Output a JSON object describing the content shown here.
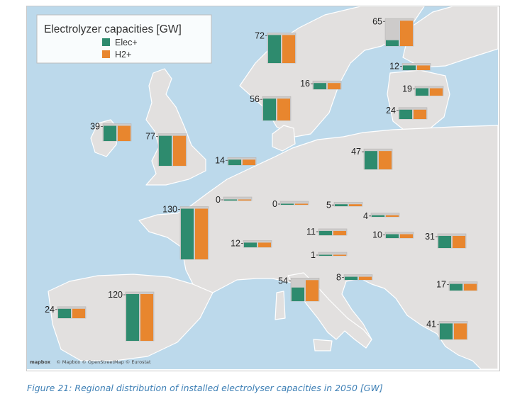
{
  "caption": "Figure 21: Regional distribution of installed electrolyser capacities in 2050 [GW]",
  "attribution": "© Mapbox  © OpenStreetMap  © Eurostat",
  "mapbox_logo": "mapbox",
  "colors": {
    "elec": "#2e8b6e",
    "h2": "#e8862e",
    "sea": "#bcd9eb",
    "land": "#e2e0df",
    "border": "#ffffff",
    "box": "#cdcbca"
  },
  "chart_data": {
    "type": "bar",
    "title": "Electrolyzer capacities [GW]",
    "legend_position": "top-left",
    "series": [
      {
        "name": "Elec+",
        "color": "#2e8b6e"
      },
      {
        "name": "H2+",
        "color": "#e8862e"
      }
    ],
    "regions": [
      {
        "label": "72",
        "elec": 72,
        "h2": 72
      },
      {
        "label": "65",
        "elec": 15,
        "h2": 65
      },
      {
        "label": "12",
        "elec": 12,
        "h2": 12
      },
      {
        "label": "16",
        "elec": 16,
        "h2": 16
      },
      {
        "label": "19",
        "elec": 19,
        "h2": 19
      },
      {
        "label": "56",
        "elec": 56,
        "h2": 56
      },
      {
        "label": "24",
        "elec": 24,
        "h2": 24
      },
      {
        "label": "39",
        "elec": 39,
        "h2": 39
      },
      {
        "label": "77",
        "elec": 77,
        "h2": 77
      },
      {
        "label": "14",
        "elec": 14,
        "h2": 14
      },
      {
        "label": "47",
        "elec": 47,
        "h2": 47
      },
      {
        "label": "0",
        "elec": 0,
        "h2": 0
      },
      {
        "label": "0",
        "elec": 0,
        "h2": 0
      },
      {
        "label": "130",
        "elec": 130,
        "h2": 130
      },
      {
        "label": "5",
        "elec": 5,
        "h2": 5
      },
      {
        "label": "4",
        "elec": 4,
        "h2": 4
      },
      {
        "label": "11",
        "elec": 11,
        "h2": 11
      },
      {
        "label": "10",
        "elec": 10,
        "h2": 10
      },
      {
        "label": "31",
        "elec": 31,
        "h2": 31
      },
      {
        "label": "12",
        "elec": 12,
        "h2": 12
      },
      {
        "label": "1",
        "elec": 1,
        "h2": 1
      },
      {
        "label": "8",
        "elec": 8,
        "h2": 8
      },
      {
        "label": "54",
        "elec": 35,
        "h2": 54
      },
      {
        "label": "17",
        "elec": 17,
        "h2": 17
      },
      {
        "label": "120",
        "elec": 120,
        "h2": 120
      },
      {
        "label": "24",
        "elec": 24,
        "h2": 24
      },
      {
        "label": "41",
        "elec": 41,
        "h2": 41
      }
    ]
  }
}
